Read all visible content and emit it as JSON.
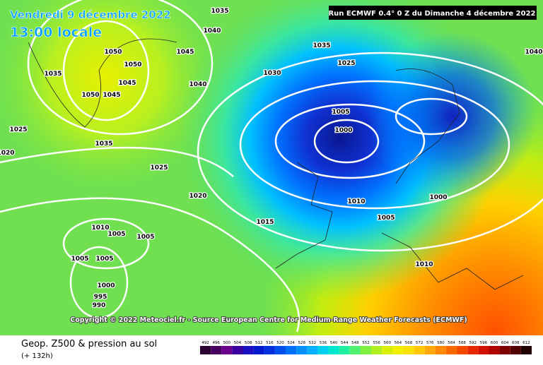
{
  "header": {
    "date": "Vendredi 9 décembre 2022",
    "time": "13:00 locale",
    "run": "Run ECMWF 0.4° 0 Z du Dimanche 4 décembre 2022"
  },
  "copyright": "Copyright © 2022 Meteociel.fr - Source European Centre for Medium-Range Weather Forecasts (ECMWF)",
  "isobar_labels": [
    "1035",
    "1040",
    "1045",
    "1050",
    "1050",
    "1045",
    "1050",
    "1045",
    "1035",
    "1025",
    "1030",
    "1040",
    "1025",
    "1035",
    "1020",
    "1025",
    "1020",
    "1005",
    "1000",
    "1010",
    "1005",
    "1000",
    "1015",
    "1010",
    "1005",
    "1005",
    "1005",
    "1005",
    "1000",
    "995",
    "990",
    "1010",
    "1040",
    "1035"
  ],
  "legend": {
    "title": "Geop. Z500 & pression au sol",
    "lead": "(+ 132h)",
    "scale": [
      492,
      496,
      500,
      504,
      508,
      512,
      516,
      520,
      524,
      528,
      532,
      536,
      540,
      544,
      548,
      552,
      556,
      560,
      564,
      568,
      572,
      576,
      580,
      584,
      588,
      592,
      596,
      600,
      604,
      608,
      612
    ],
    "colors": [
      "#2a0030",
      "#4a0060",
      "#6a0090",
      "#3a00a0",
      "#1a10c0",
      "#0018d0",
      "#0030e0",
      "#0050f0",
      "#0070ff",
      "#0090ff",
      "#00b0ff",
      "#00d0f0",
      "#00e8d0",
      "#20f0a0",
      "#50f070",
      "#80f040",
      "#b0f020",
      "#d8f000",
      "#f0f000",
      "#f8e000",
      "#ffc800",
      "#ffa800",
      "#ff8800",
      "#ff6800",
      "#f84800",
      "#e82800",
      "#d01000",
      "#b00000",
      "#800000",
      "#500000",
      "#200000"
    ]
  }
}
